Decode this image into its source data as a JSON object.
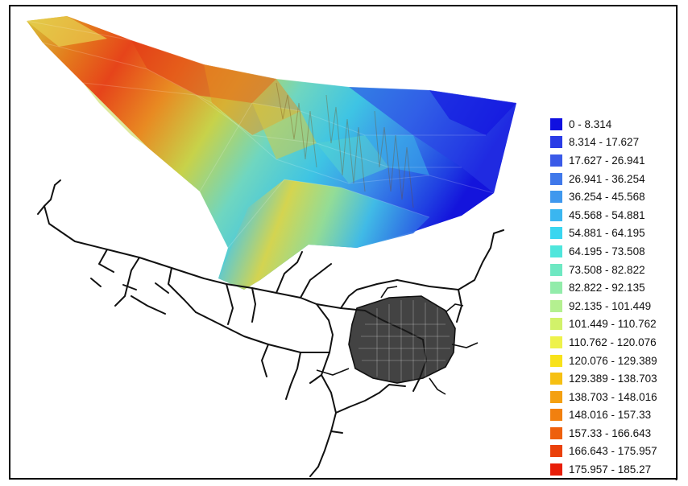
{
  "map": {
    "legend": {
      "items": [
        {
          "label": "0 - 8.314",
          "color": "#1010e0"
        },
        {
          "label": "8.314 - 17.627",
          "color": "#2a3ce6"
        },
        {
          "label": "17.627 - 26.941",
          "color": "#3a5ae8"
        },
        {
          "label": "26.941 - 36.254",
          "color": "#3f78ea"
        },
        {
          "label": "36.254 - 45.568",
          "color": "#3f98ee"
        },
        {
          "label": "45.568 - 54.881",
          "color": "#3ab6f0"
        },
        {
          "label": "54.881 - 64.195",
          "color": "#3ad6f0"
        },
        {
          "label": "64.195 - 73.508",
          "color": "#4fe6dc"
        },
        {
          "label": "73.508 - 82.822",
          "color": "#6ee8c2"
        },
        {
          "label": "82.822 - 92.135",
          "color": "#92ecaa"
        },
        {
          "label": "92.135 - 101.449",
          "color": "#b4f090"
        },
        {
          "label": "101.449 - 110.762",
          "color": "#d2f26a"
        },
        {
          "label": "110.762 - 120.076",
          "color": "#eef24a"
        },
        {
          "label": "120.076 - 129.389",
          "color": "#f8e21a"
        },
        {
          "label": "129.389 - 138.703",
          "color": "#f6c012"
        },
        {
          "label": "138.703 - 148.016",
          "color": "#f4a010"
        },
        {
          "label": "148.016 - 157.33",
          "color": "#f2800e"
        },
        {
          "label": "157.33 - 166.643",
          "color": "#ee600c"
        },
        {
          "label": "166.643 - 175.957",
          "color": "#ea400a"
        },
        {
          "label": "175.957 - 185.27",
          "color": "#e81e08"
        }
      ]
    },
    "trailing_mark": "."
  }
}
